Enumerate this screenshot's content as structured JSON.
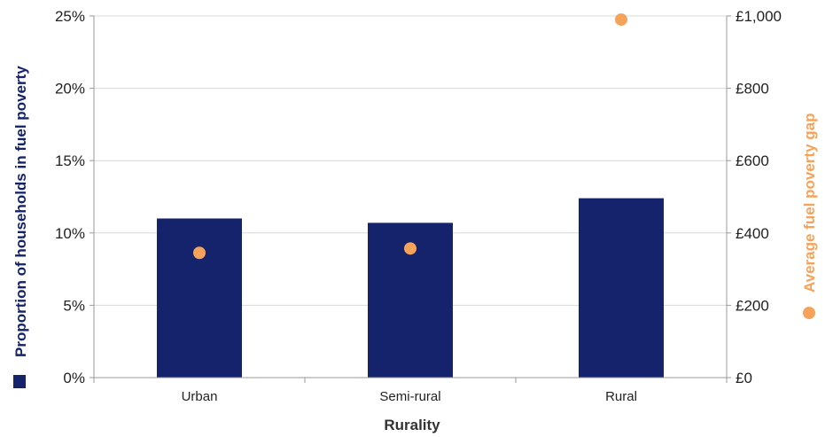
{
  "colors": {
    "bar": "#14236b",
    "dot": "#f5a35a",
    "grid": "#d8d8d8",
    "axis": "#9a9a9a",
    "text": "#222222"
  },
  "chart_data": {
    "type": "bar",
    "categories": [
      "Urban",
      "Semi-rural",
      "Rural"
    ],
    "xlabel": "Rurality",
    "ylabel_left": "Proportion of households in fuel poverty",
    "ylabel_right": "Average fuel poverty gap",
    "left_axis": {
      "lim": [
        0,
        25
      ],
      "ticks": [
        0,
        5,
        10,
        15,
        20,
        25
      ],
      "tick_labels": [
        "0%",
        "5%",
        "10%",
        "15%",
        "20%",
        "25%"
      ]
    },
    "right_axis": {
      "lim": [
        0,
        1000
      ],
      "ticks": [
        0,
        200,
        400,
        600,
        800,
        1000
      ],
      "tick_labels": [
        "£0",
        "£200",
        "£400",
        "£600",
        "£800",
        "£1,000"
      ]
    },
    "grid": true,
    "series": [
      {
        "kind": "bar",
        "axis": "left",
        "values": [
          11.0,
          10.7,
          12.4
        ]
      },
      {
        "kind": "scatter",
        "axis": "right",
        "values": [
          345,
          357,
          990
        ]
      }
    ]
  }
}
